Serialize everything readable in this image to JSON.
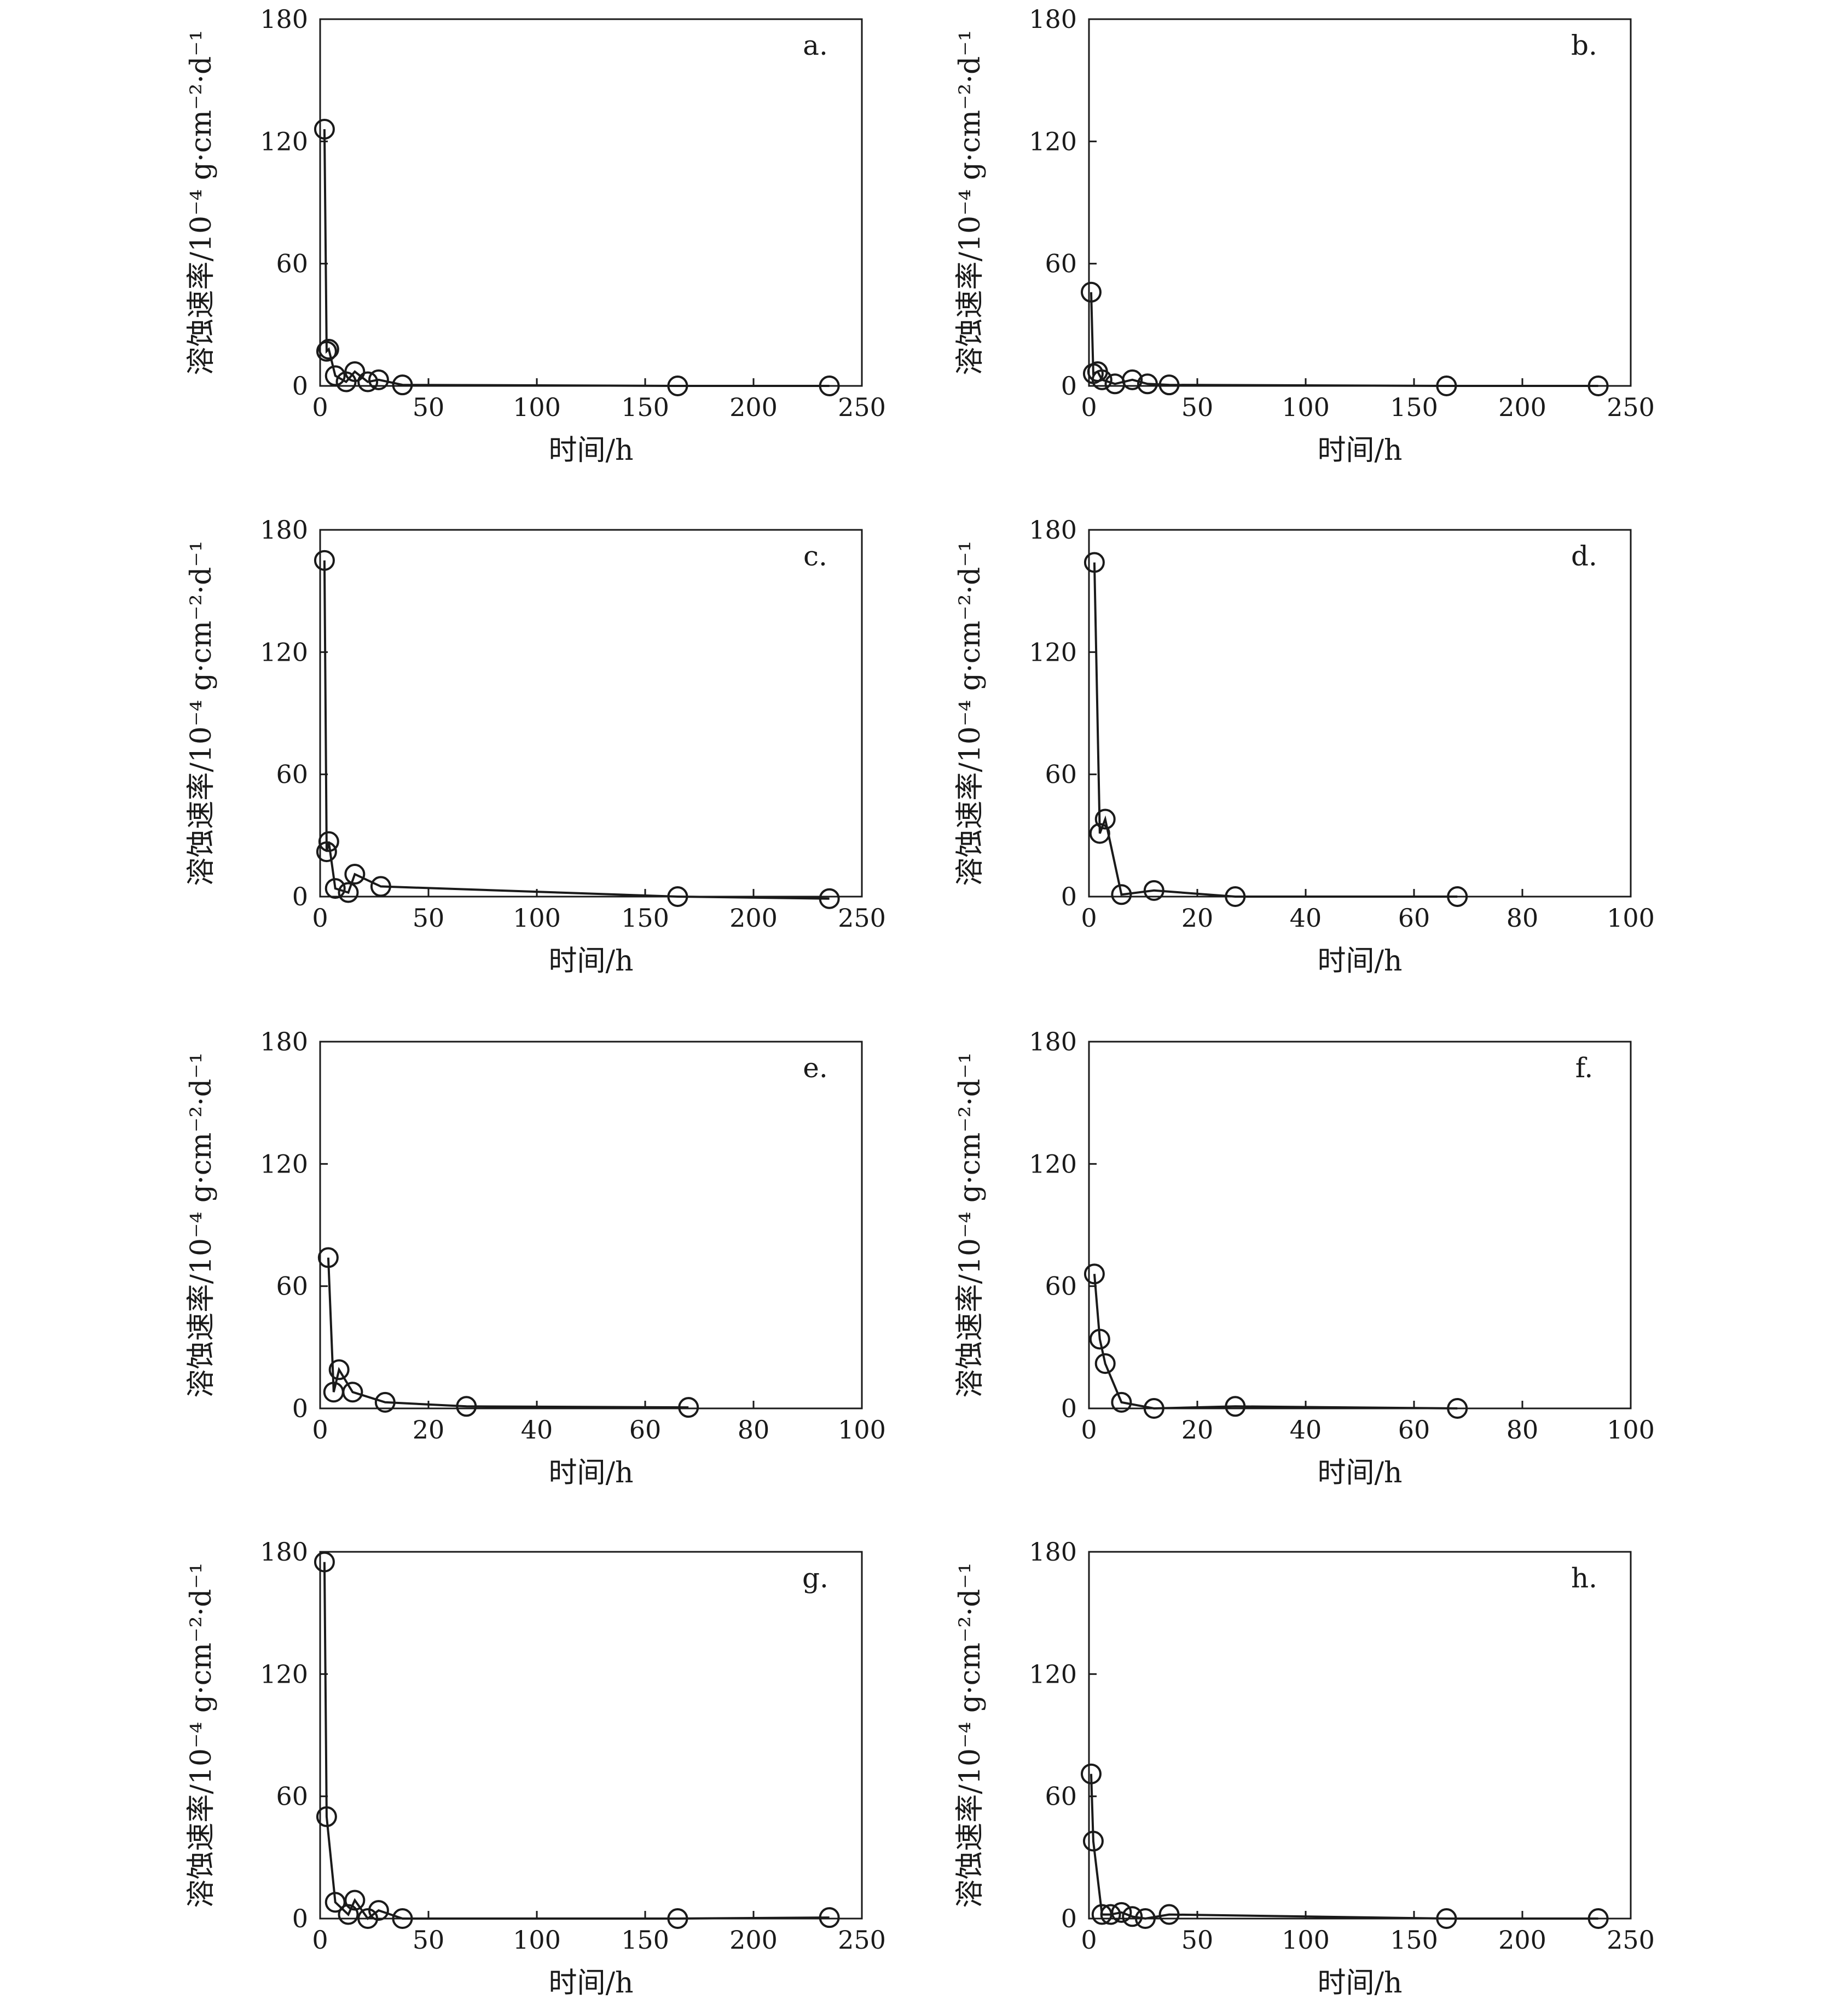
{
  "figure": {
    "colors": {
      "ink": "#1a1a1a",
      "background": "#ffffff"
    }
  },
  "chart_data": [
    {
      "panel": "a.",
      "type": "line",
      "xlabel": "时间/h",
      "ylabel": "溶蚀速率/10⁻⁴ g·cm⁻²·d⁻¹",
      "xlim": [
        0,
        250
      ],
      "ylim": [
        0,
        180
      ],
      "xticks": [
        "0",
        "50",
        "100",
        "150",
        "200",
        "250"
      ],
      "yticks": [
        "0",
        "60",
        "120",
        "180"
      ],
      "grid": false,
      "marker": "open-circle",
      "x": [
        2,
        3,
        4,
        7,
        12,
        16,
        22,
        27,
        38,
        165,
        235
      ],
      "y": [
        126,
        17,
        18,
        5,
        2,
        7,
        2,
        3,
        0.5,
        0,
        0
      ]
    },
    {
      "panel": "b.",
      "type": "line",
      "xlabel": "时间/h",
      "ylabel": "溶蚀速率/10⁻⁴ g·cm⁻²·d⁻¹",
      "xlim": [
        0,
        250
      ],
      "ylim": [
        0,
        180
      ],
      "xticks": [
        "0",
        "50",
        "100",
        "150",
        "200",
        "250"
      ],
      "yticks": [
        "0",
        "60",
        "120",
        "180"
      ],
      "grid": false,
      "marker": "open-circle",
      "x": [
        1,
        2,
        4,
        6,
        12,
        20,
        27,
        37,
        165,
        235
      ],
      "y": [
        46,
        6,
        7,
        3,
        1,
        3,
        1,
        0.5,
        0,
        0
      ]
    },
    {
      "panel": "c.",
      "type": "line",
      "xlabel": "时间/h",
      "ylabel": "溶蚀速率/10⁻⁴ g·cm⁻²·d⁻¹",
      "xlim": [
        0,
        250
      ],
      "ylim": [
        0,
        180
      ],
      "xticks": [
        "0",
        "50",
        "100",
        "150",
        "200",
        "250"
      ],
      "yticks": [
        "0",
        "60",
        "120",
        "180"
      ],
      "grid": false,
      "marker": "open-circle",
      "x": [
        2,
        3,
        4,
        7,
        13,
        16,
        28,
        165,
        235
      ],
      "y": [
        165,
        22,
        27,
        4,
        2,
        11,
        5,
        0,
        -1
      ]
    },
    {
      "panel": "d.",
      "type": "line",
      "xlabel": "时间/h",
      "ylabel": "溶蚀速率/10⁻⁴ g·cm⁻²·d⁻¹",
      "xlim": [
        0,
        100
      ],
      "ylim": [
        0,
        180
      ],
      "xticks": [
        "0",
        "20",
        "40",
        "60",
        "80",
        "100"
      ],
      "yticks": [
        "0",
        "60",
        "120",
        "180"
      ],
      "grid": false,
      "marker": "open-circle",
      "x": [
        1,
        2,
        3,
        6,
        12,
        27,
        68
      ],
      "y": [
        164,
        31,
        38,
        1,
        3,
        0,
        0
      ]
    },
    {
      "panel": "e.",
      "type": "line",
      "xlabel": "时间/h",
      "ylabel": "溶蚀速率/10⁻⁴ g·cm⁻²·d⁻¹",
      "xlim": [
        0,
        100
      ],
      "ylim": [
        0,
        180
      ],
      "xticks": [
        "0",
        "20",
        "40",
        "60",
        "80",
        "100"
      ],
      "yticks": [
        "0",
        "60",
        "120",
        "180"
      ],
      "grid": false,
      "marker": "open-circle",
      "x": [
        1.5,
        2.5,
        3.5,
        6,
        12,
        27,
        68
      ],
      "y": [
        74,
        8,
        19,
        8,
        3,
        1,
        0.5
      ]
    },
    {
      "panel": "f.",
      "type": "line",
      "xlabel": "时间/h",
      "ylabel": "溶蚀速率/10⁻⁴ g·cm⁻²·d⁻¹",
      "xlim": [
        0,
        100
      ],
      "ylim": [
        0,
        180
      ],
      "xticks": [
        "0",
        "20",
        "40",
        "60",
        "80",
        "100"
      ],
      "yticks": [
        "0",
        "60",
        "120",
        "180"
      ],
      "grid": false,
      "marker": "open-circle",
      "x": [
        1,
        2,
        3,
        6,
        12,
        27,
        68
      ],
      "y": [
        66,
        34,
        22,
        3,
        0,
        1,
        0
      ]
    },
    {
      "panel": "g.",
      "type": "line",
      "xlabel": "时间/h",
      "ylabel": "溶蚀速率/10⁻⁴ g·cm⁻²·d⁻¹",
      "xlim": [
        0,
        250
      ],
      "ylim": [
        0,
        180
      ],
      "xticks": [
        "0",
        "50",
        "100",
        "150",
        "200",
        "250"
      ],
      "yticks": [
        "0",
        "60",
        "120",
        "180"
      ],
      "grid": false,
      "marker": "open-circle",
      "x": [
        2,
        3,
        7,
        13,
        16,
        22,
        27,
        38,
        165,
        235
      ],
      "y": [
        175,
        50,
        8,
        2,
        9,
        0,
        4,
        0,
        0,
        0.5
      ]
    },
    {
      "panel": "h.",
      "type": "line",
      "xlabel": "时间/h",
      "ylabel": "溶蚀速率/10⁻⁴ g·cm⁻²·d⁻¹",
      "xlim": [
        0,
        250
      ],
      "ylim": [
        0,
        180
      ],
      "xticks": [
        "0",
        "50",
        "100",
        "150",
        "200",
        "250"
      ],
      "yticks": [
        "0",
        "60",
        "120",
        "180"
      ],
      "grid": false,
      "marker": "open-circle",
      "x": [
        1,
        2,
        6,
        10,
        15,
        20,
        26,
        37,
        165,
        235
      ],
      "y": [
        71,
        38,
        2,
        2,
        3,
        1,
        0,
        2,
        0,
        0
      ]
    }
  ]
}
